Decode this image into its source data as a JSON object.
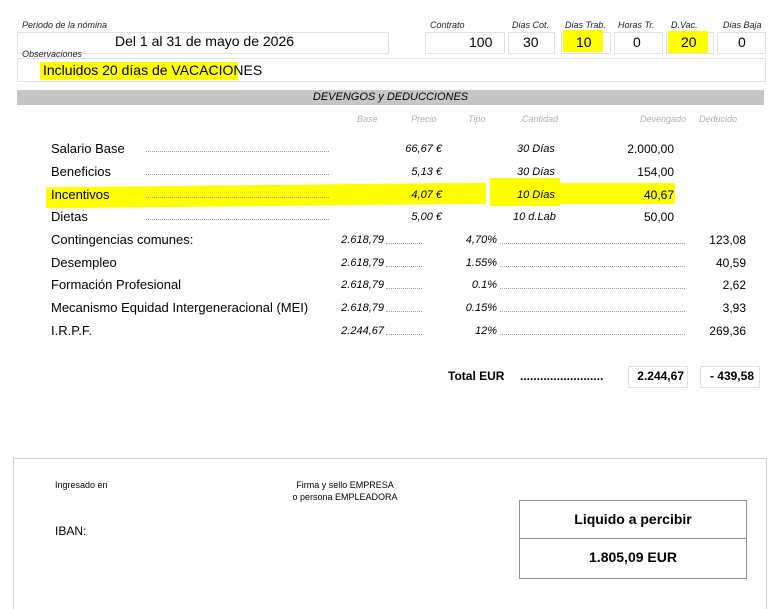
{
  "header": {
    "periodo_label": "Periodo de la nómina",
    "periodo_value": "Del 1 al 31  de mayo de 2026",
    "observaciones_label": "Observaciones",
    "observaciones_value": "Incluidos 20 días de VACACIONES",
    "contrato_label": "Contrato",
    "contrato_value": "100",
    "dias_cot_label": "Dias Cot.",
    "dias_cot_value": "30",
    "dias_trab_label": "Dias Trab.",
    "dias_trab_value": "10",
    "horas_tr_label": "Horas Tr.",
    "horas_tr_value": "0",
    "d_vac_label": "D.Vac.",
    "d_vac_value": "20",
    "dias_baja_label": "Dias Baja",
    "dias_baja_value": "0"
  },
  "section_title": "DEVENGOS y DEDUCCIONES",
  "columns": {
    "base": "Base",
    "precio": "Precio",
    "tipo": "Tipo",
    "cantidad": "Cantidad",
    "devengado": "Devengado",
    "deducido": "Deducido"
  },
  "devengos": [
    {
      "concepto": "Salario Base",
      "precio": "66,67 €",
      "cantidad": "30  Días",
      "devengado": "2.000,00"
    },
    {
      "concepto": "Beneficios",
      "precio": "5,13 €",
      "cantidad": "30  Días",
      "devengado": "154,00"
    },
    {
      "concepto": "Incentivos",
      "precio": "4,07 €",
      "cantidad": "10  Días",
      "devengado": "40,67"
    },
    {
      "concepto": "Dietas",
      "precio": "5,00 €",
      "cantidad": "10  d.Lab",
      "devengado": "50,00"
    }
  ],
  "deducciones": [
    {
      "concepto": "Contingencias comunes:",
      "base": "2.618,79",
      "tipo": "4,70%",
      "deducido": "123,08"
    },
    {
      "concepto": "Desempleo",
      "base": "2.618,79",
      "tipo": "1.55%",
      "deducido": "40,59"
    },
    {
      "concepto": "Formación Profesional",
      "base": "2.618,79",
      "tipo": "0.1%",
      "deducido": "2,62"
    },
    {
      "concepto": "Mecanismo Equidad Intergeneracional (MEI)",
      "base": "2.618,79",
      "tipo": "0.15%",
      "deducido": "3,93"
    },
    {
      "concepto": "I.R.P.F.",
      "base": "2.244,67",
      "tipo": "12%",
      "deducido": "269,36"
    }
  ],
  "totals": {
    "label": "Total EUR",
    "dots": ".........................",
    "devengado": "2.244,67",
    "deducido": "- 439,58"
  },
  "footer": {
    "ingresado_en": "Ingresado en",
    "firma_line1": "Firma y sello EMPRESA",
    "firma_line2": "o  persona EMPLEADORA",
    "iban_label": "IBAN:",
    "liquido_label": "Liquido a percibir",
    "liquido_value": "1.805,09 EUR"
  },
  "highlight_color": "#ffff00"
}
